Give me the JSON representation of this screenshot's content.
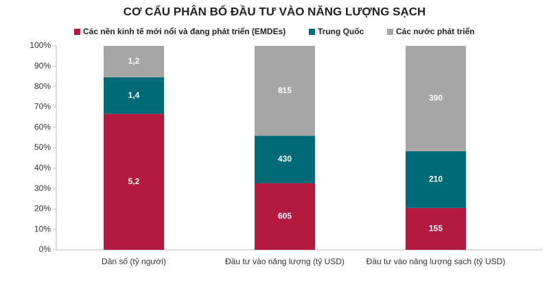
{
  "chart_data": {
    "type": "bar",
    "stack": "percent",
    "title": "CƠ CẤU PHÂN BỐ ĐẦU TƯ VÀO NĂNG LƯỢNG SẠCH",
    "categories": [
      "Dân số (tỷ người)",
      "Đầu tư vào năng lượng (tỷ USD)",
      "Đầu tư vào năng lượng sạch (tỷ USD)"
    ],
    "series": [
      {
        "name": "Các nền kinh tế mới nổi và đang phát triển (EMDEs)",
        "color": "#b31a40",
        "values": [
          5.2,
          605,
          155
        ],
        "value_labels": [
          "5,2",
          "605",
          "155"
        ]
      },
      {
        "name": "Trung Quốc",
        "color": "#006b76",
        "values": [
          1.4,
          430,
          210
        ],
        "value_labels": [
          "1,4",
          "430",
          "210"
        ]
      },
      {
        "name": "Các nước phát triển",
        "color": "#a6a6a6",
        "values": [
          1.2,
          815,
          390
        ],
        "value_labels": [
          "1,2",
          "815",
          "390"
        ]
      }
    ],
    "ylim": [
      0,
      100
    ],
    "yticks": [
      {
        "value": 0,
        "label": "0%"
      },
      {
        "value": 10,
        "label": "10%"
      },
      {
        "value": 20,
        "label": "20%"
      },
      {
        "value": 30,
        "label": "30%"
      },
      {
        "value": 40,
        "label": "40%"
      },
      {
        "value": 50,
        "label": "50%"
      },
      {
        "value": 60,
        "label": "60%"
      },
      {
        "value": 70,
        "label": "70%"
      },
      {
        "value": 80,
        "label": "80%"
      },
      {
        "value": 90,
        "label": "90%"
      },
      {
        "value": 100,
        "label": "100%"
      }
    ]
  }
}
